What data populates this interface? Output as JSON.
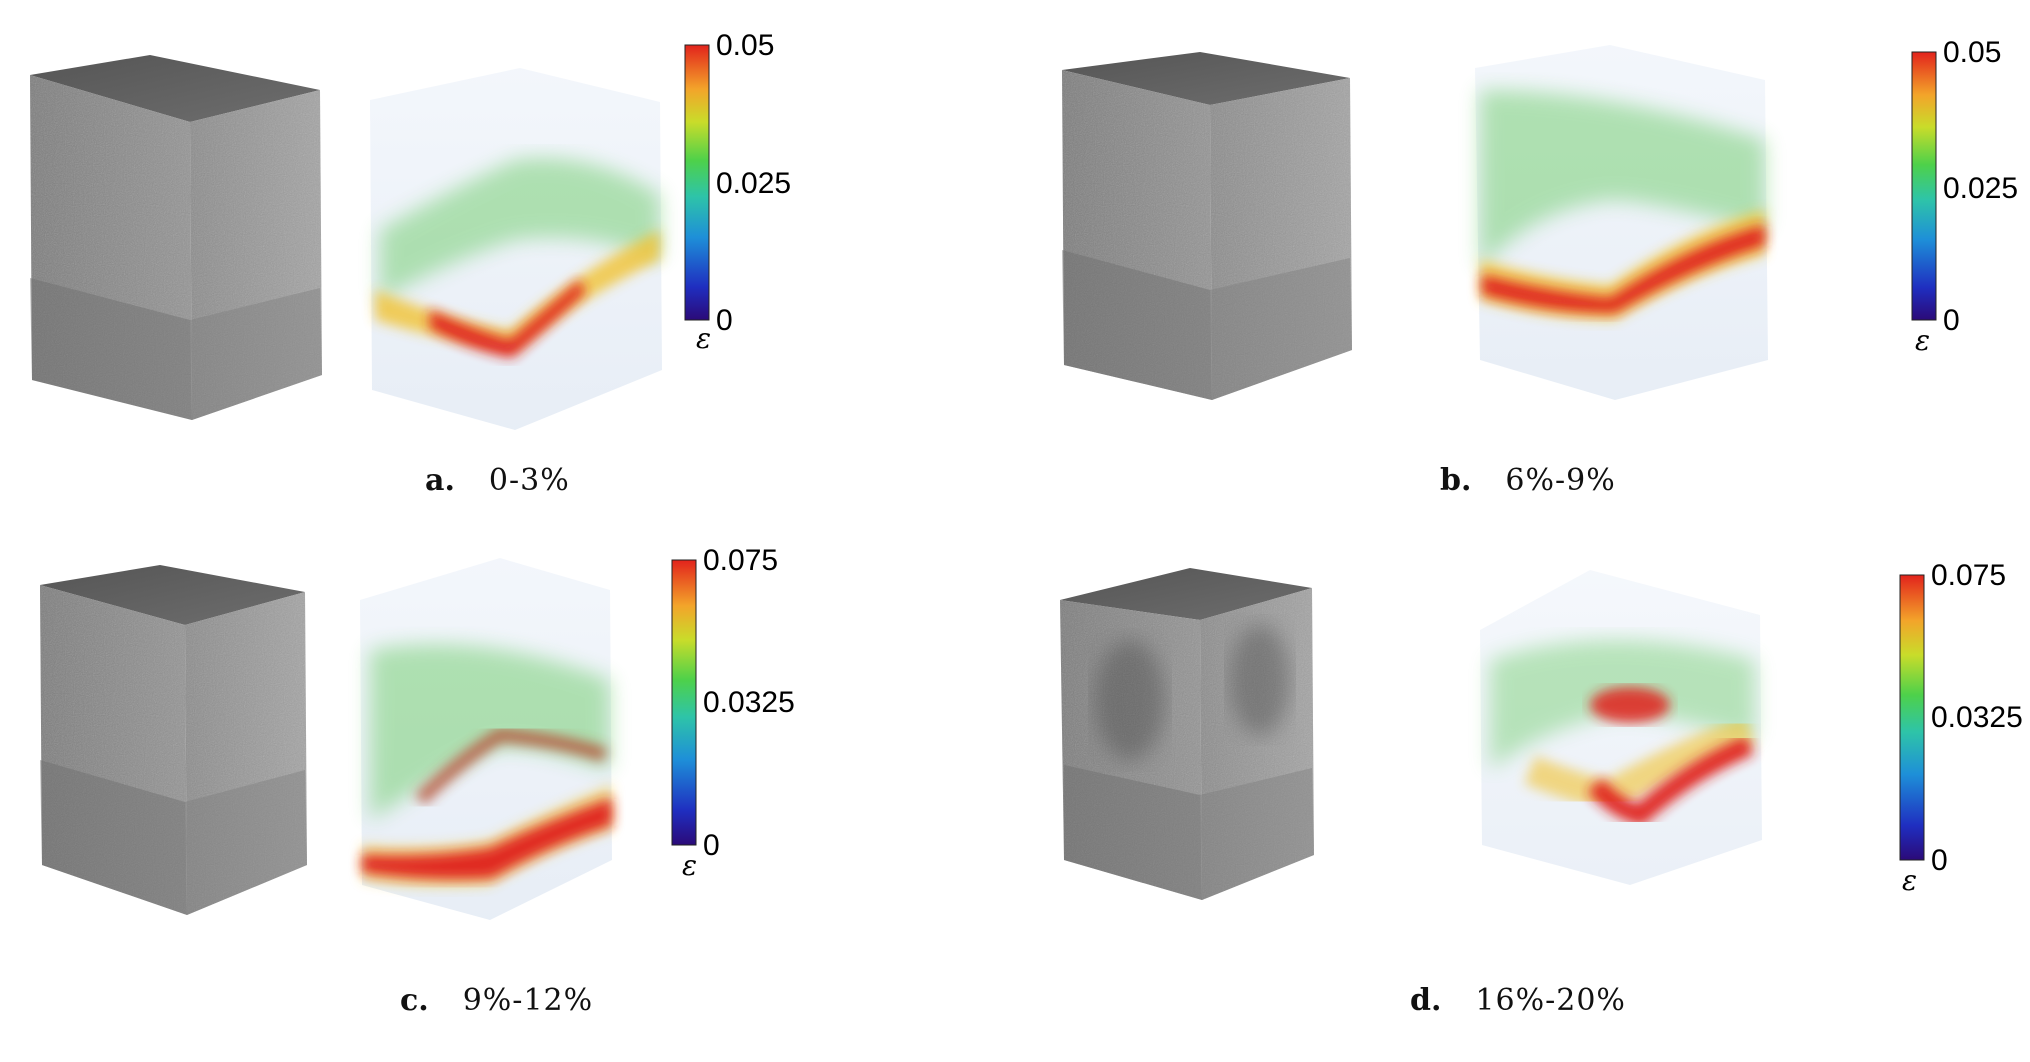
{
  "figure": {
    "panels": [
      {
        "letter": "a.",
        "range": "0-3%",
        "colorbar": {
          "max_label": "0.05",
          "mid_label": "0.025",
          "min_label": "0",
          "symbol": "ε"
        }
      },
      {
        "letter": "b.",
        "range": "6%-9%",
        "colorbar": {
          "max_label": "0.05",
          "mid_label": "0.025",
          "min_label": "0",
          "symbol": "ε"
        }
      },
      {
        "letter": "c.",
        "range": "9%-12%",
        "colorbar": {
          "max_label": "0.075",
          "mid_label": "0.0325",
          "min_label": "0",
          "symbol": "ε"
        }
      },
      {
        "letter": "d.",
        "range": "16%-20%",
        "colorbar": {
          "max_label": "0.075",
          "mid_label": "0.0325",
          "min_label": "0",
          "symbol": "ε"
        }
      }
    ],
    "colors": {
      "specimen_side": "#8a8a8a",
      "specimen_top": "#5c5c5c",
      "strain_high": "#e0201b",
      "strain_mid": "#5fc85a",
      "strain_low": "#d9e4f2"
    }
  }
}
